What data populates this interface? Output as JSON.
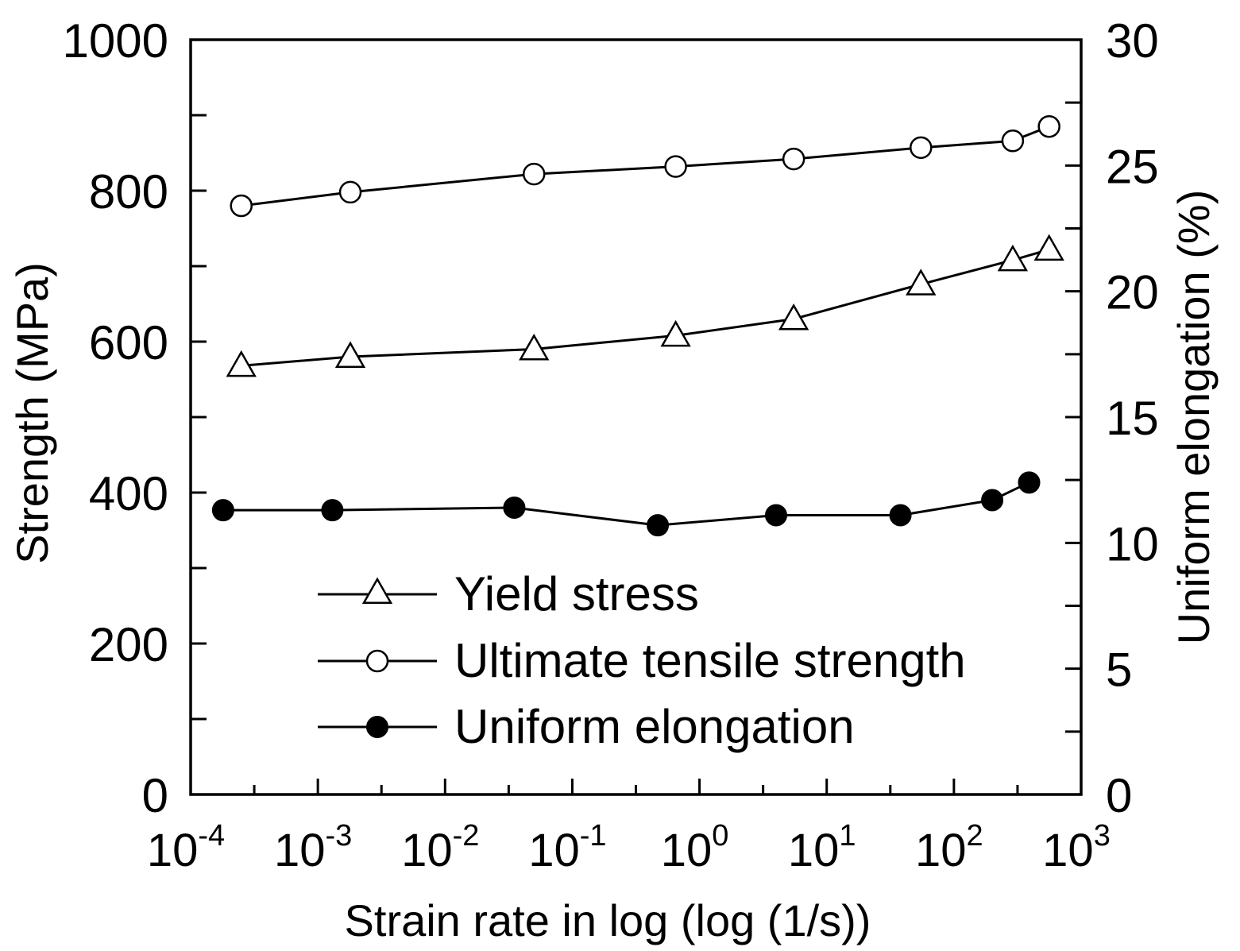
{
  "chart_data": {
    "type": "line",
    "xscale": "log",
    "xlabel": "Strain rate in log (log (1/s))",
    "ylabel": "Strength (MPa)",
    "y2label": "Uniform elongation (%)",
    "xlim": [
      -4,
      3
    ],
    "ylim": [
      0,
      1000
    ],
    "y2lim": [
      0,
      30
    ],
    "xticks": [
      {
        "base": "10",
        "exp": "-4",
        "value": -4
      },
      {
        "base": "10",
        "exp": "-3",
        "value": -3
      },
      {
        "base": "10",
        "exp": "-2",
        "value": -2
      },
      {
        "base": "10",
        "exp": "-1",
        "value": -1
      },
      {
        "base": "10",
        "exp": "0",
        "value": 0
      },
      {
        "base": "10",
        "exp": "1",
        "value": 1
      },
      {
        "base": "10",
        "exp": "2",
        "value": 2
      },
      {
        "base": "10",
        "exp": "3",
        "value": 3
      }
    ],
    "yticks": [
      "0",
      "200",
      "400",
      "600",
      "800",
      "1000"
    ],
    "y2ticks": [
      "0",
      "5",
      "10",
      "15",
      "20",
      "25",
      "30"
    ],
    "legend_position": "lower-center",
    "series": [
      {
        "name": "Yield stress",
        "axis": "left",
        "marker": "open-triangle",
        "x": [
          0.00025,
          0.0018,
          0.05,
          0.65,
          5.5,
          55,
          290,
          560
        ],
        "values": [
          568,
          580,
          590,
          608,
          630,
          676,
          708,
          722
        ]
      },
      {
        "name": "Ultimate tensile strength",
        "axis": "left",
        "marker": "open-circle",
        "x": [
          0.00025,
          0.0018,
          0.05,
          0.65,
          5.5,
          55,
          290,
          560
        ],
        "values": [
          780,
          798,
          822,
          832,
          842,
          857,
          866,
          885
        ]
      },
      {
        "name": "Uniform elongation",
        "axis": "right",
        "marker": "filled-circle",
        "x": [
          0.00018,
          0.0013,
          0.035,
          0.47,
          4,
          38,
          200,
          390
        ],
        "values": [
          11.3,
          11.3,
          11.4,
          10.7,
          11.1,
          11.1,
          11.7,
          12.4
        ]
      }
    ]
  }
}
